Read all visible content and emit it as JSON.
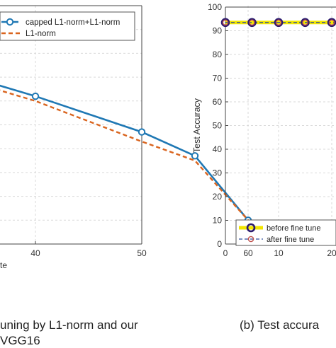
{
  "chart_data": [
    {
      "type": "line",
      "title": "",
      "xlabel": "te",
      "ylabel": "",
      "x_ticks": [
        40,
        50,
        60
      ],
      "xlim": [
        28,
        60
      ],
      "ylim": [
        0,
        100
      ],
      "grid": true,
      "legend_position": "top-right",
      "series": [
        {
          "name": "capped L1-norm+L1-norm",
          "color": "#1f78b4",
          "style": "solid",
          "marker": "circle",
          "x": [
            28,
            40,
            50,
            55,
            60
          ],
          "y": [
            78,
            62,
            47,
            37,
            10
          ]
        },
        {
          "name": "L1-norm",
          "color": "#d9641e",
          "style": "dashed",
          "marker": "none",
          "x": [
            28,
            40,
            50,
            55,
            60
          ],
          "y": [
            76,
            60,
            43,
            35,
            10
          ]
        }
      ]
    },
    {
      "type": "line",
      "title": "",
      "xlabel": "",
      "ylabel": "Test Accuracy",
      "x_ticks": [
        0,
        10,
        20
      ],
      "y_ticks": [
        0,
        10,
        20,
        30,
        40,
        50,
        60,
        70,
        80,
        90,
        100
      ],
      "xlim": [
        0,
        22
      ],
      "ylim": [
        0,
        100
      ],
      "grid": true,
      "legend_position": "bottom-left",
      "series": [
        {
          "name": "before fine tune",
          "color": "#f2e600",
          "line_style": "solid",
          "marker_color": "#2a1a6e",
          "x": [
            0,
            5,
            10,
            15,
            20
          ],
          "y": [
            93.5,
            93.5,
            93.5,
            93.5,
            93.5
          ]
        },
        {
          "name": "after fine tune",
          "color": "#2a4a9a",
          "line_style": "dashed",
          "marker_color": "#c0504d",
          "x": [
            0,
            5,
            10,
            15,
            20
          ],
          "y": [
            93.5,
            93.5,
            93.5,
            93.5,
            93.5
          ]
        }
      ]
    }
  ],
  "captions": {
    "left": "uning by L1-norm and our",
    "left_line2": "VGG16",
    "right": "(b) Test accura"
  }
}
